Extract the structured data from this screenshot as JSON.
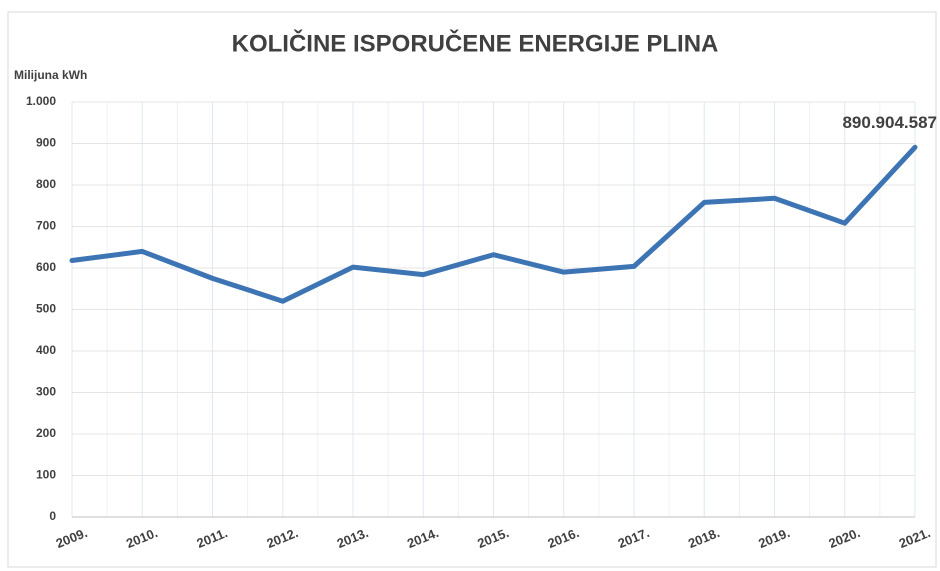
{
  "chart_data": {
    "type": "line",
    "title": "KOLIČINE ISPORUČENE ENERGIJE PLINA",
    "y_label": "Milijuna kWh",
    "categories": [
      "2009.",
      "2010.",
      "2011.",
      "2012.",
      "2013.",
      "2014.",
      "2015.",
      "2016.",
      "2017.",
      "2018.",
      "2019.",
      "2020.",
      "2021."
    ],
    "series": [
      {
        "name": "Količine isporučene energije plina",
        "color": "#3d74b3",
        "values": [
          618,
          640,
          575,
          520,
          602,
          584,
          632,
          590,
          604,
          758,
          768,
          708,
          890.904587
        ],
        "value_labels": [
          null,
          null,
          null,
          null,
          null,
          null,
          null,
          null,
          null,
          null,
          null,
          null,
          "890.904.587"
        ]
      }
    ],
    "ylim": [
      0,
      1000
    ],
    "yticks": [
      0,
      100,
      200,
      300,
      400,
      500,
      600,
      700,
      800,
      900,
      {
        "value": 1000,
        "label": "1.000"
      }
    ],
    "grid": true
  }
}
